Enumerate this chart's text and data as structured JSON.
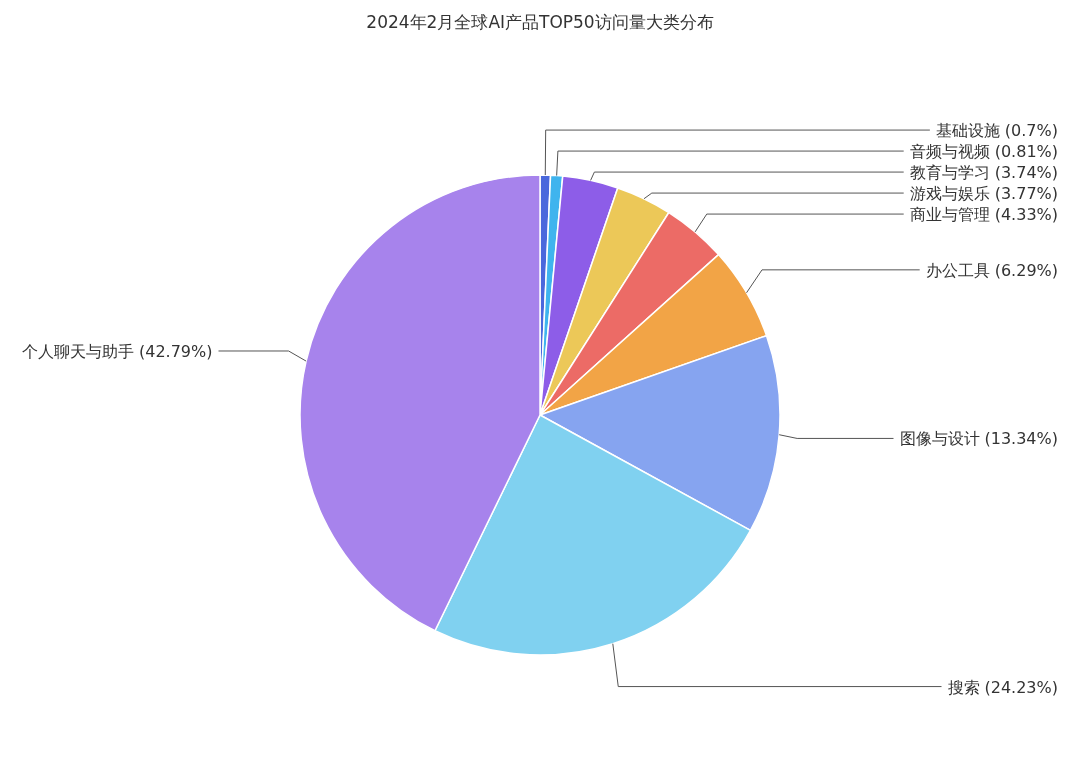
{
  "chart_data": {
    "type": "pie",
    "title": "2024年2月全球AI产品TOP50访问量大类分布",
    "categories": [
      "基础设施",
      "音频与视频",
      "教育与学习",
      "游戏与娱乐",
      "商业与管理",
      "办公工具",
      "图像与设计",
      "搜索",
      "个人聊天与助手"
    ],
    "values": [
      0.7,
      0.81,
      3.74,
      3.77,
      4.33,
      6.29,
      13.34,
      24.23,
      42.79
    ],
    "colors": [
      "#4a68dc",
      "#3fb4ee",
      "#8d5de8",
      "#ecc858",
      "#ec6b66",
      "#f2a446",
      "#86a4f0",
      "#80d1f0",
      "#a783ec"
    ],
    "value_labels": [
      "(0.7%)",
      "(0.81%)",
      "(3.74%)",
      "(3.77%)",
      "(4.33%)",
      "(6.29%)",
      "(13.34%)",
      "(24.23%)",
      "(42.79%)"
    ]
  }
}
